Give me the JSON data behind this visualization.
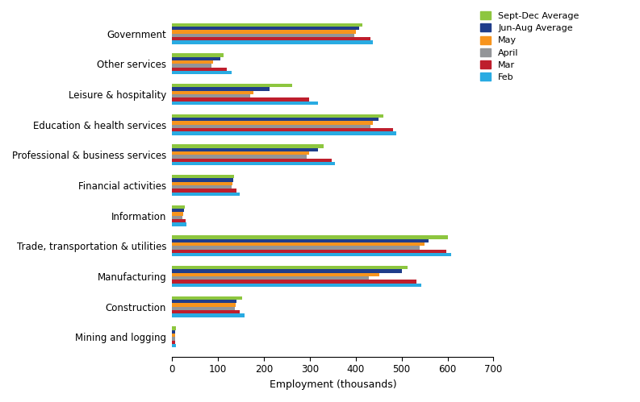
{
  "categories": [
    "Government",
    "Other services",
    "Leisure & hospitality",
    "Education & health services",
    "Professional & business services",
    "Financial activities",
    "Information",
    "Trade, transportation & utilities",
    "Manufacturing",
    "Construction",
    "Mining and logging"
  ],
  "series": {
    "Sept-Dec Average": [
      415,
      112,
      262,
      460,
      330,
      135,
      27,
      600,
      512,
      152,
      8
    ],
    "Jun-Aug Average": [
      408,
      105,
      212,
      450,
      318,
      133,
      26,
      558,
      500,
      140,
      7
    ],
    "May": [
      400,
      90,
      178,
      438,
      298,
      132,
      24,
      550,
      452,
      138,
      6
    ],
    "April": [
      396,
      85,
      170,
      432,
      294,
      130,
      23,
      540,
      428,
      137,
      6
    ],
    "Mar": [
      432,
      120,
      298,
      482,
      348,
      140,
      30,
      597,
      532,
      148,
      7
    ],
    "Feb": [
      438,
      130,
      318,
      488,
      355,
      148,
      32,
      607,
      542,
      158,
      9
    ]
  },
  "colors": {
    "Sept-Dec Average": "#8dc63f",
    "Jun-Aug Average": "#1f3d8a",
    "May": "#f7941d",
    "April": "#939598",
    "Mar": "#be1e2d",
    "Feb": "#29abe2"
  },
  "xlabel": "Employment (thousands)",
  "xlim": [
    0,
    700
  ],
  "xticks": [
    0,
    100,
    200,
    300,
    400,
    500,
    600,
    700
  ],
  "bar_height": 0.115,
  "figsize": [
    7.93,
    4.99
  ],
  "dpi": 100
}
